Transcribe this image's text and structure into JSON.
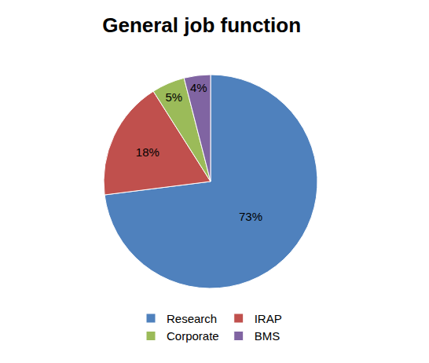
{
  "chart_data": {
    "type": "pie",
    "title": "General job function",
    "categories": [
      "Research",
      "IRAP",
      "Corporate",
      "BMS"
    ],
    "values": [
      73,
      18,
      5,
      4
    ],
    "value_labels": [
      "73%",
      "18%",
      "5%",
      "4%"
    ],
    "colors": [
      "#4f81bd",
      "#c0504d",
      "#9bbb59",
      "#8064a2"
    ],
    "data_labels": true,
    "legend": "bottom"
  }
}
